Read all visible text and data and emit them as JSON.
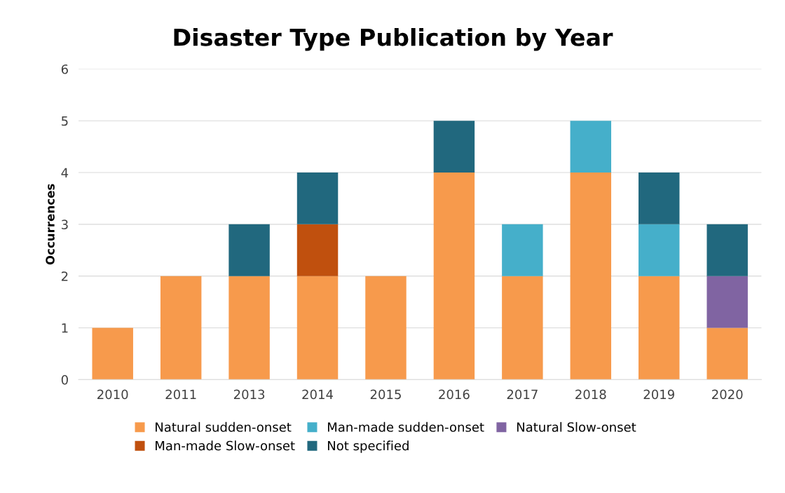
{
  "chart_data": {
    "type": "bar",
    "title": "Disaster Type Publication by Year",
    "ylabel": "Occurrences",
    "categories": [
      "2010",
      "2011",
      "2013",
      "2014",
      "2015",
      "2016",
      "2017",
      "2018",
      "2019",
      "2020"
    ],
    "stacked": true,
    "series": [
      {
        "name": "Natural sudden-onset",
        "color": "#f79a4c",
        "values": [
          1,
          2,
          2,
          2,
          2,
          4,
          2,
          4,
          2,
          1
        ]
      },
      {
        "name": "Man-made sudden-onset",
        "color": "#45afca",
        "values": [
          0,
          0,
          0,
          0,
          0,
          0,
          1,
          1,
          1,
          0
        ]
      },
      {
        "name": "Natural Slow-onset",
        "color": "#8064a2",
        "values": [
          0,
          0,
          0,
          0,
          0,
          0,
          0,
          0,
          0,
          1
        ]
      },
      {
        "name": "Man-made Slow-onset",
        "color": "#c0500e",
        "values": [
          0,
          0,
          0,
          1,
          0,
          0,
          0,
          0,
          0,
          0
        ]
      },
      {
        "name": "Not specified",
        "color": "#21687e",
        "values": [
          0,
          0,
          1,
          1,
          0,
          1,
          0,
          0,
          1,
          1
        ]
      }
    ],
    "ylim": [
      0,
      6
    ],
    "yticks": [
      0,
      1,
      2,
      3,
      4,
      5,
      6
    ],
    "grid": "y",
    "legend": "bottom"
  }
}
